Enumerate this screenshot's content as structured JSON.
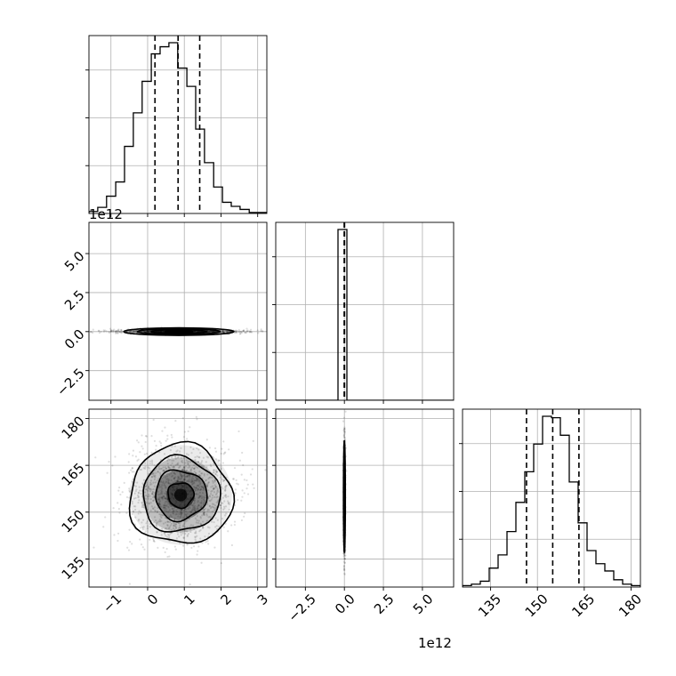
{
  "chart_data": {
    "type": "corner",
    "title": "",
    "grid": true,
    "params": [
      {
        "range": [
          -1.6,
          3.25
        ],
        "ticks": [
          -1,
          0,
          1,
          2,
          3
        ],
        "tick_labels": [
          "−1",
          "0",
          "1",
          "2",
          "3"
        ],
        "offset": ""
      },
      {
        "range": [
          -4.4,
          7.0
        ],
        "ticks": [
          -2.5,
          0.0,
          2.5,
          5.0
        ],
        "tick_labels": [
          "−2.5",
          "0.0",
          "2.5",
          "5.0"
        ],
        "offset": "1e12"
      },
      {
        "range": [
          126,
          183
        ],
        "ticks": [
          135,
          150,
          165,
          180
        ],
        "tick_labels": [
          "135",
          "150",
          "165",
          "180"
        ],
        "offset": ""
      }
    ],
    "histograms": [
      {
        "param": 0,
        "bin_edges": [
          -1.6,
          -1.36,
          -1.12,
          -0.87,
          -0.63,
          -0.39,
          -0.15,
          0.1,
          0.34,
          0.58,
          0.82,
          1.07,
          1.31,
          1.55,
          1.8,
          2.04,
          2.28,
          2.52,
          2.77,
          3.01,
          3.25
        ],
        "counts": [
          2,
          6,
          17,
          31,
          66,
          99,
          130,
          157,
          164,
          168,
          143,
          125,
          83,
          50,
          26,
          11,
          7,
          4,
          1,
          1
        ],
        "quantiles": [
          0.2,
          0.83,
          1.42
        ]
      },
      {
        "param": 1,
        "bin_edges": [
          -4.4,
          -3.83,
          -3.26,
          -2.69,
          -2.12,
          -1.55,
          -0.98,
          -0.41,
          0.16,
          0.73,
          1.3,
          1.87,
          2.44,
          3.01,
          3.58,
          4.15,
          4.72,
          5.29,
          5.86,
          6.43,
          7.0
        ],
        "counts": [
          0,
          0,
          0,
          0,
          0,
          0,
          0,
          1,
          0,
          0,
          0,
          0,
          0,
          0,
          0,
          0,
          0,
          0,
          0,
          0
        ],
        "quantiles": [
          -0.01,
          0.0,
          0.01
        ]
      },
      {
        "param": 2,
        "bin_edges": [
          126,
          128.85,
          131.7,
          134.55,
          137.4,
          140.25,
          143.1,
          145.95,
          148.8,
          151.65,
          154.5,
          157.35,
          160.2,
          163.05,
          165.9,
          168.75,
          171.6,
          174.45,
          177.3,
          180.15,
          183
        ],
        "counts": [
          1,
          2,
          4,
          13,
          22,
          38,
          58,
          79,
          98,
          117,
          116,
          104,
          72,
          44,
          25,
          16,
          11,
          5,
          2,
          1
        ],
        "quantiles": [
          146.5,
          154.9,
          163.3
        ]
      }
    ],
    "scatter_panels": [
      {
        "x_param": 0,
        "y_param": 1,
        "center": [
          0.85,
          0.0
        ],
        "spread": [
          0.75,
          0.12
        ]
      },
      {
        "x_param": 0,
        "y_param": 2,
        "center": [
          0.9,
          155.5
        ],
        "spread": [
          0.7,
          8.0
        ]
      },
      {
        "x_param": 1,
        "y_param": 2,
        "center": [
          0.0,
          155.0
        ],
        "spread": [
          0.03,
          9.0
        ]
      }
    ]
  }
}
